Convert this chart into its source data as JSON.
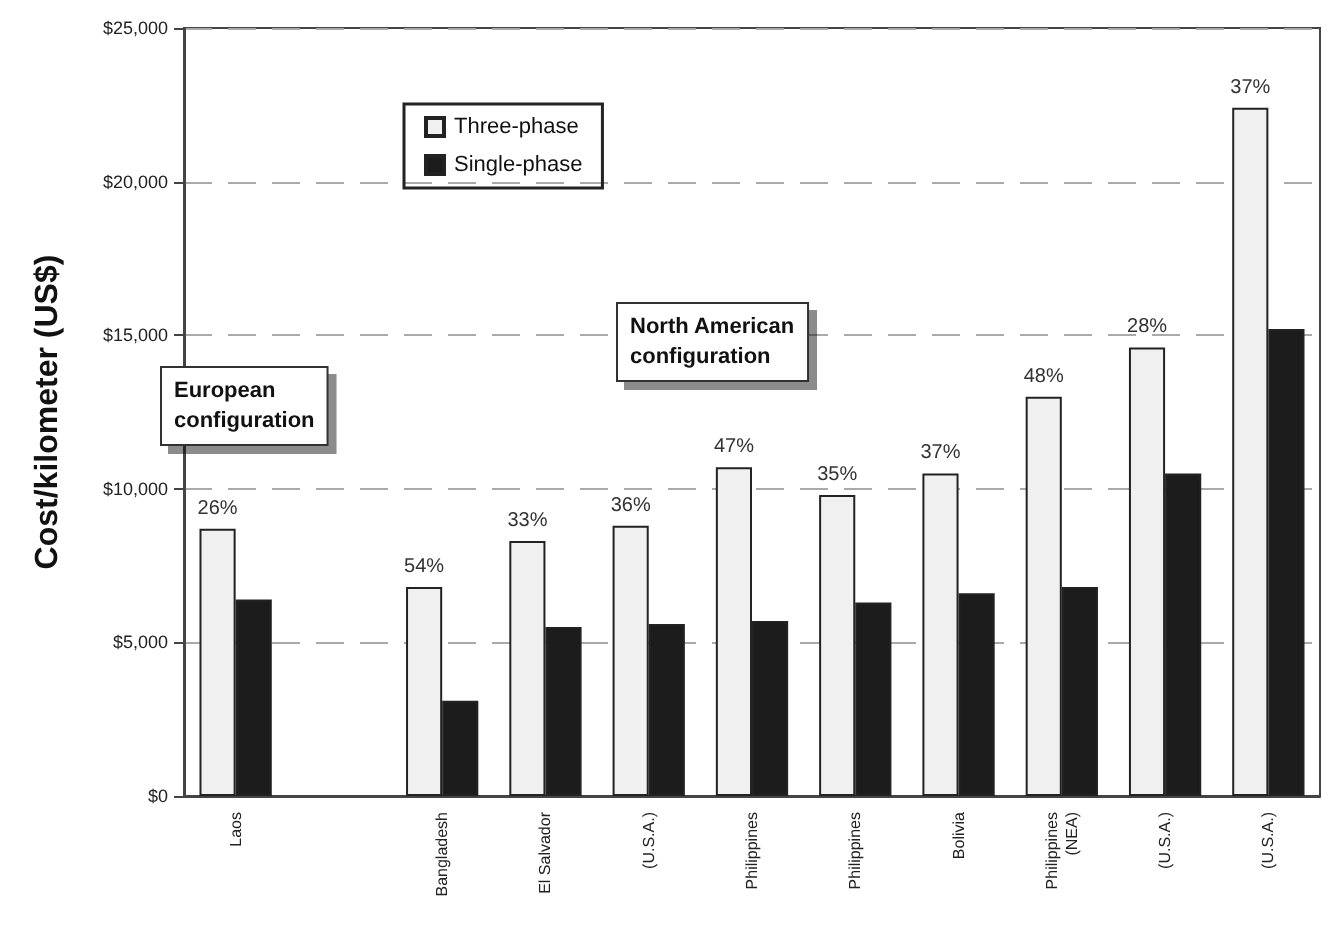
{
  "chart_data": {
    "type": "bar",
    "ylabel": "Cost/kilometer (US$)",
    "categories": [
      "Laos",
      null,
      "Bangladesh",
      "El Salvador",
      "(U.S.A.)",
      "Philippines",
      "Philippines",
      "Bolivia",
      "Philippines\n(NEA)",
      "(U.S.A.)",
      "(U.S.A.)"
    ],
    "series": [
      {
        "name": "Three-phase",
        "color": "#f0f0f0",
        "values": [
          8700,
          null,
          6800,
          8300,
          8800,
          10700,
          9800,
          10500,
          13000,
          14600,
          22400
        ]
      },
      {
        "name": "Single-phase",
        "color": "#1c1c1c",
        "values": [
          6400,
          null,
          3100,
          5500,
          5600,
          5700,
          6300,
          6600,
          6800,
          10500,
          15200
        ]
      }
    ],
    "ylim": [
      0,
      25000
    ],
    "yticks": [
      {
        "value": 0,
        "label": "$0"
      },
      {
        "value": 5000,
        "label": "$5,000"
      },
      {
        "value": 10000,
        "label": "$10,000"
      },
      {
        "value": 15000,
        "label": "$15,000"
      },
      {
        "value": 20000,
        "label": "$20,000"
      },
      {
        "value": 25000,
        "label": "$25,000"
      }
    ],
    "grid": "y",
    "legend": "top left",
    "annotations": [
      "European\nconfiguration",
      "North American\nconfiguration",
      "26%",
      "54%",
      "33%",
      "36%",
      "47%",
      "35%",
      "37%",
      "48%",
      "28%",
      "37%"
    ]
  }
}
